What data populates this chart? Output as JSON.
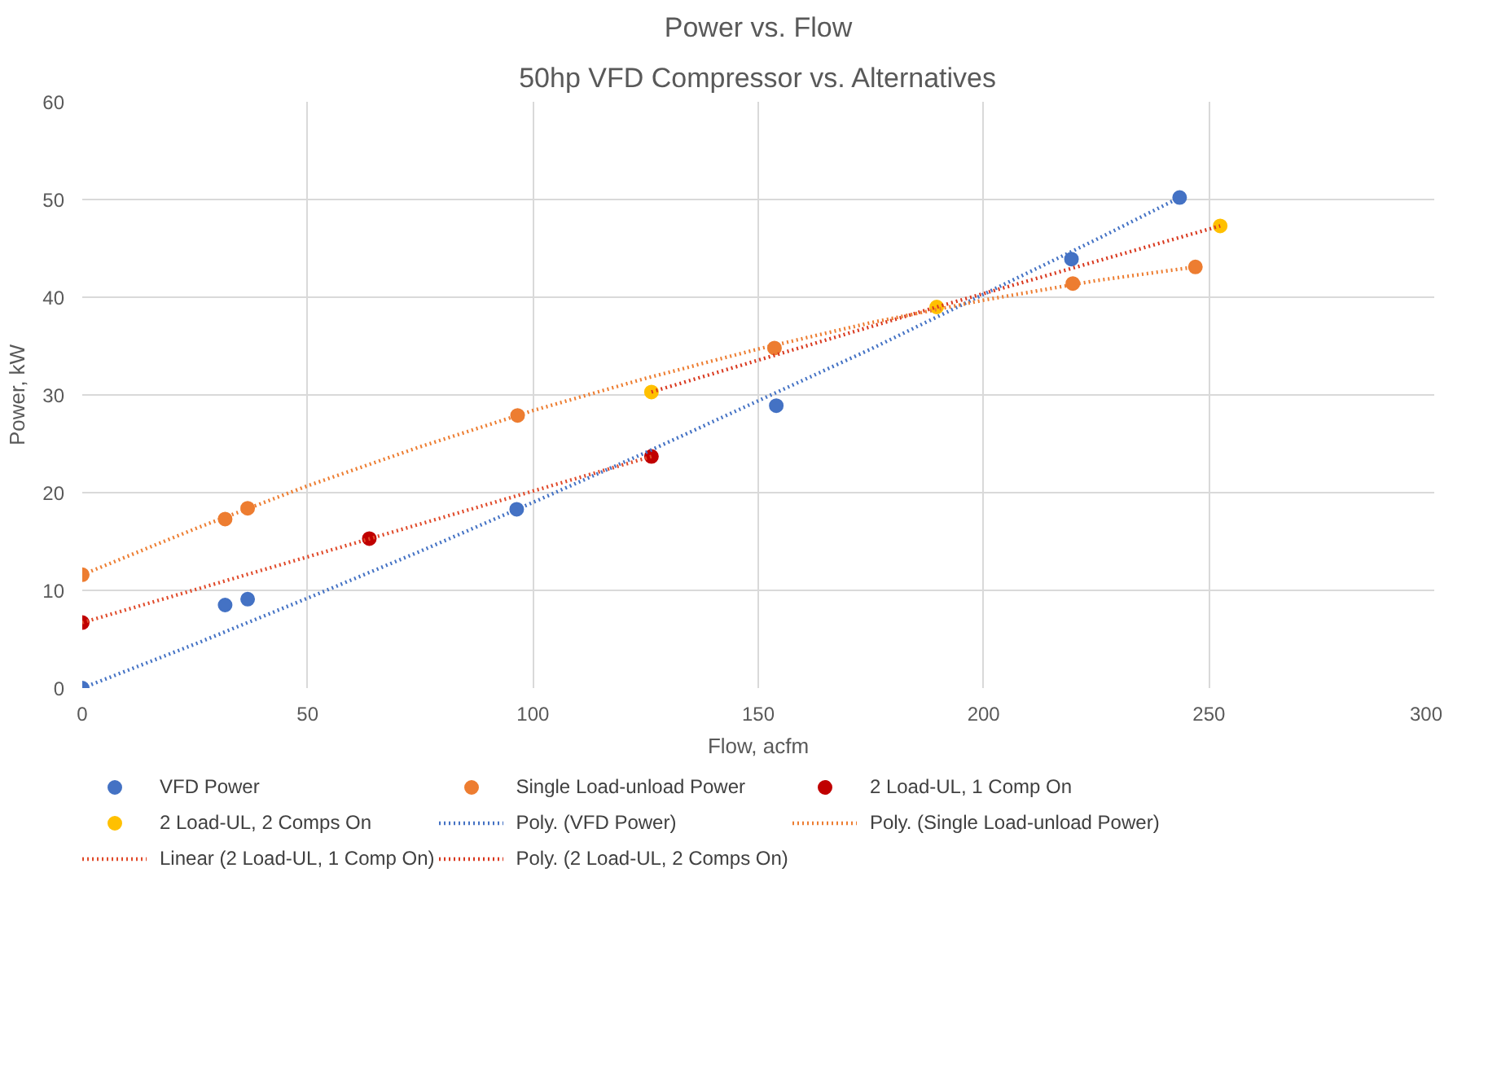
{
  "chart_data": {
    "type": "scatter",
    "title": "Power vs. Flow",
    "subtitle": "50hp VFD Compressor vs. Alternatives",
    "xlabel": "Flow, acfm",
    "ylabel": "Power, kW",
    "xlim": [
      0,
      300
    ],
    "xticks": [
      0,
      50,
      100,
      150,
      200,
      250,
      300
    ],
    "ylim": [
      0,
      60
    ],
    "yticks": [
      0,
      10,
      20,
      30,
      40,
      50,
      60
    ],
    "grid": true,
    "legend": "bottom",
    "marker": "circle",
    "series": [
      {
        "name": "VFD Power",
        "color": "#4472c4",
        "x": [
          0,
          31.7,
          36.7,
          96.4,
          154,
          219.5,
          243.5
        ],
        "values": [
          0,
          8.5,
          9.1,
          18.3,
          28.9,
          43.9,
          50.2
        ]
      },
      {
        "name": "Single Load-unload Power",
        "color": "#ed7d31",
        "x": [
          0,
          31.7,
          36.7,
          96.6,
          153.6,
          219.8,
          247
        ],
        "values": [
          11.6,
          17.3,
          18.4,
          27.9,
          34.8,
          41.4,
          43.1
        ]
      },
      {
        "name": "2 Load-UL, 1 Comp On",
        "color": "#c00000",
        "x": [
          0,
          63.7,
          126.3
        ],
        "values": [
          6.7,
          15.3,
          23.7
        ]
      },
      {
        "name": "2 Load-UL, 2 Comps On",
        "color": "#ffc000",
        "x": [
          126.3,
          189.6,
          252.5
        ],
        "values": [
          30.3,
          39.0,
          47.3
        ]
      },
      {
        "name": "Poly. (VFD Power)",
        "type": "line",
        "marker": "none",
        "line_style": "dotted",
        "color": "#4472c4",
        "x": [
          0,
          25,
          50,
          75,
          100,
          125,
          150,
          175,
          200,
          225,
          243.5
        ],
        "values": [
          0,
          4.5,
          9.2,
          14.0,
          19.0,
          24.1,
          29.4,
          34.7,
          40.3,
          45.9,
          50.2
        ]
      },
      {
        "name": "Poly. (Single Load-unload Power)",
        "type": "line",
        "marker": "none",
        "line_style": "dotted",
        "color": "#ed7d31",
        "x": [
          0,
          25,
          50,
          75,
          100,
          125,
          150,
          175,
          200,
          225,
          247
        ],
        "values": [
          11.6,
          16.3,
          20.7,
          24.7,
          28.4,
          31.7,
          34.7,
          37.4,
          39.7,
          41.7,
          43.1
        ]
      },
      {
        "name": "Linear (2 Load-UL, 1 Comp On)",
        "type": "line",
        "marker": "none",
        "line_style": "dotted",
        "color": "#e04a2a",
        "x": [
          0,
          126.3
        ],
        "values": [
          6.7,
          23.7
        ]
      },
      {
        "name": "Poly. (2 Load-UL, 2 Comps On)",
        "type": "line",
        "marker": "none",
        "line_style": "dotted",
        "color": "#d9381e",
        "x": [
          126.3,
          189.6,
          252.5
        ],
        "values": [
          30.3,
          39.0,
          47.3
        ]
      }
    ]
  }
}
